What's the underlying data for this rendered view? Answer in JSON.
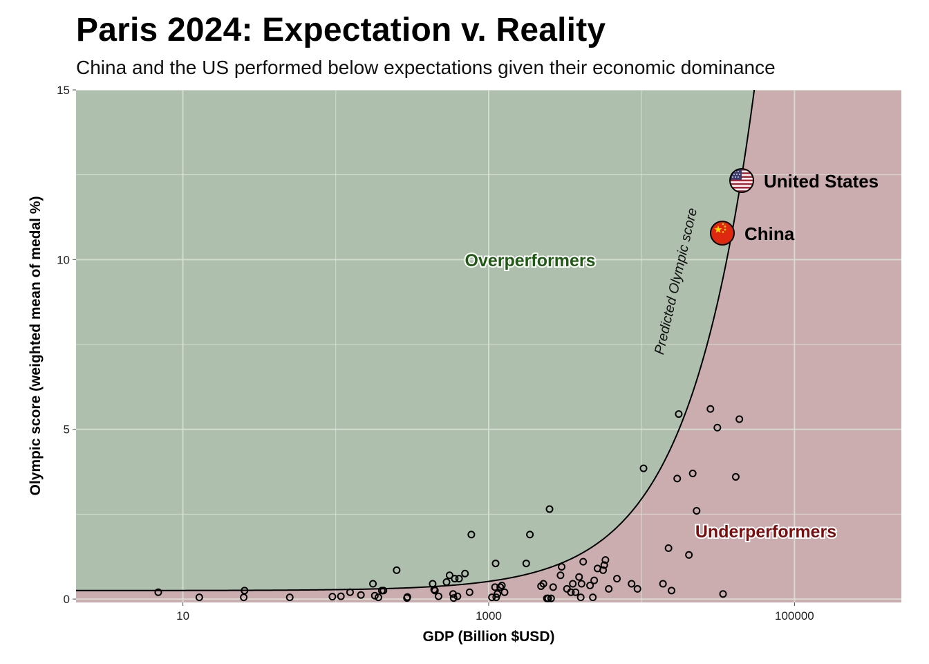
{
  "colors": {
    "over_fill": "#aebfad",
    "under_fill": "#ccadaf",
    "grid": "#d8e2d6",
    "over_text": "#1f5a12",
    "under_text": "#7a0d0d"
  },
  "chart_data": {
    "type": "scatter",
    "title": "Paris 2024: Expectation v. Reality",
    "subtitle": "China and the US performed below expectations given their economic dominance",
    "xlabel": "GDP (Billion $USD)",
    "ylabel": "Olympic score (weighted mean of medal %)",
    "x_scale": "log10",
    "xlim": [
      2,
      500000
    ],
    "ylim": [
      -0.1,
      15
    ],
    "x_ticks": [
      10,
      1000,
      100000
    ],
    "x_tick_labels": [
      "10",
      "1000",
      "100000"
    ],
    "y_ticks": [
      0,
      5,
      10,
      15
    ],
    "y_tick_labels": [
      "0",
      "5",
      "10",
      "15"
    ],
    "grid": true,
    "curve_label": "Predicted Olympic score",
    "regions": {
      "over": "Overperformers",
      "under": "Underperformers"
    },
    "highlights": [
      {
        "name": "United States",
        "x": 27000,
        "y": 12.3,
        "icon": "us-flag-icon"
      },
      {
        "name": "China",
        "x": 17800,
        "y": 10.75,
        "icon": "china-flag-icon"
      }
    ],
    "points": [
      [
        6.9,
        0.2
      ],
      [
        12.8,
        0.05
      ],
      [
        25,
        0.05
      ],
      [
        25.3,
        0.25
      ],
      [
        50,
        0.05
      ],
      [
        95,
        0.07
      ],
      [
        108,
        0.08
      ],
      [
        124,
        0.2
      ],
      [
        146,
        0.12
      ],
      [
        175,
        0.45
      ],
      [
        180,
        0.1
      ],
      [
        190,
        0.05
      ],
      [
        200,
        0.25
      ],
      [
        205,
        0.25
      ],
      [
        250,
        0.85
      ],
      [
        292,
        0.03
      ],
      [
        294,
        0.06
      ],
      [
        430,
        0.45
      ],
      [
        440,
        0.28
      ],
      [
        445,
        0.25
      ],
      [
        470,
        0.08
      ],
      [
        530,
        0.5
      ],
      [
        555,
        0.7
      ],
      [
        585,
        0.15
      ],
      [
        590,
        0.03
      ],
      [
        600,
        0.6
      ],
      [
        625,
        0.08
      ],
      [
        640,
        0.6
      ],
      [
        700,
        0.75
      ],
      [
        750,
        0.2
      ],
      [
        770,
        1.9
      ],
      [
        1050,
        0.05
      ],
      [
        1100,
        0.35
      ],
      [
        1110,
        1.05
      ],
      [
        1120,
        0.05
      ],
      [
        1140,
        0.15
      ],
      [
        1190,
        0.35
      ],
      [
        1220,
        0.4
      ],
      [
        1270,
        0.2
      ],
      [
        1760,
        1.05
      ],
      [
        1860,
        1.9
      ],
      [
        2200,
        0.38
      ],
      [
        2280,
        0.45
      ],
      [
        2400,
        0.02
      ],
      [
        2450,
        0.02
      ],
      [
        2500,
        2.65
      ],
      [
        2560,
        0.02
      ],
      [
        2640,
        0.35
      ],
      [
        2950,
        0.7
      ],
      [
        3000,
        0.95
      ],
      [
        3250,
        0.3
      ],
      [
        3450,
        0.2
      ],
      [
        3550,
        0.45
      ],
      [
        3700,
        0.2
      ],
      [
        3900,
        0.65
      ],
      [
        4000,
        0.05
      ],
      [
        4050,
        0.45
      ],
      [
        4150,
        1.1
      ],
      [
        4600,
        0.4
      ],
      [
        4800,
        0.05
      ],
      [
        4900,
        0.55
      ],
      [
        5150,
        0.9
      ],
      [
        5600,
        0.85
      ],
      [
        5700,
        1.0
      ],
      [
        5800,
        1.15
      ],
      [
        6100,
        0.3
      ],
      [
        6900,
        0.6
      ],
      [
        8600,
        0.45
      ],
      [
        9400,
        0.3
      ],
      [
        10300,
        3.85
      ],
      [
        13800,
        0.45
      ],
      [
        15000,
        1.5
      ],
      [
        15700,
        0.25
      ],
      [
        17100,
        3.55
      ],
      [
        17500,
        5.45
      ],
      [
        20400,
        1.3
      ],
      [
        21600,
        3.7
      ],
      [
        22900,
        2.6
      ],
      [
        28200,
        5.6
      ],
      [
        31300,
        5.05
      ],
      [
        34100,
        0.15
      ],
      [
        41300,
        3.6
      ],
      [
        43600,
        5.3
      ]
    ],
    "predicted_curve": {
      "model": "y = 0.25 + x / 3700",
      "x_range": [
        2,
        56000
      ]
    }
  }
}
